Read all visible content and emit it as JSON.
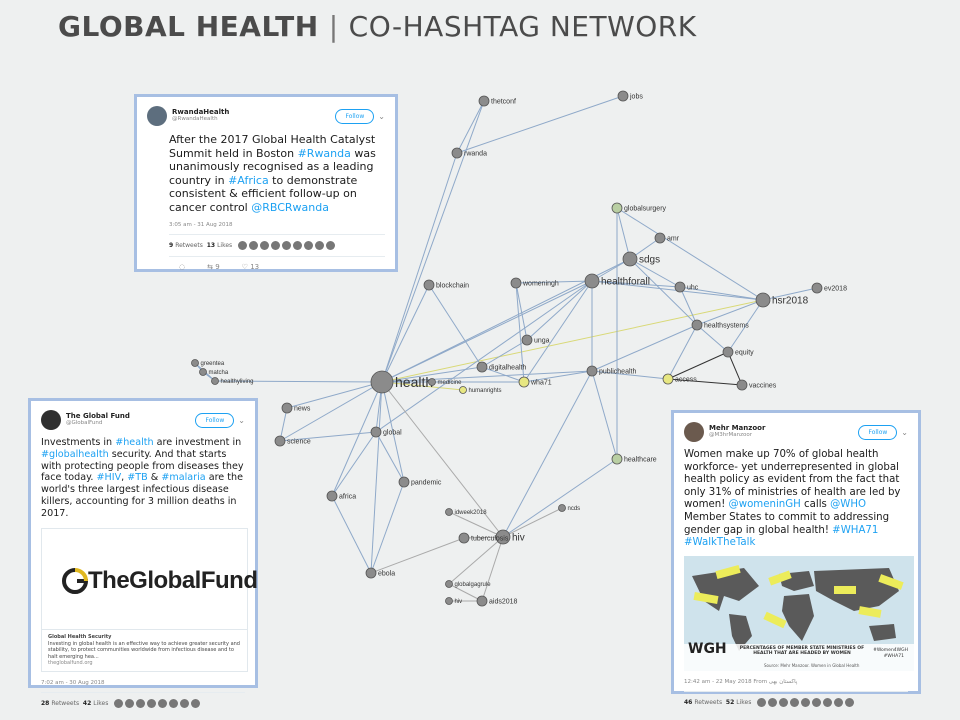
{
  "header": {
    "title_bold": "GLOBAL HEALTH",
    "separator": "|",
    "title_rest": "CO-HASHTAG NETWORK"
  },
  "colors": {
    "edge_blue": "#8fa9c9",
    "edge_gray": "#aaaaaa",
    "edge_yellow": "#d9d977",
    "edge_dark": "#333333",
    "node_gray": "#8b8b8b",
    "node_yellow": "#e7e782",
    "node_green": "#b9cfa3",
    "card_border": "#a7bfe3",
    "link": "#1da1f2"
  },
  "chart_data": {
    "type": "network",
    "nodes": [
      {
        "id": "health",
        "label": "health",
        "size": "large",
        "color": "gray"
      },
      {
        "id": "healthforall",
        "label": "healthforall",
        "size": "medium",
        "color": "gray"
      },
      {
        "id": "sdgs",
        "label": "sdgs",
        "size": "medium",
        "color": "gray"
      },
      {
        "id": "hsr2018",
        "label": "hsr2018",
        "size": "medium",
        "color": "gray"
      },
      {
        "id": "hiv",
        "label": "hiv",
        "size": "medium",
        "color": "gray"
      },
      {
        "id": "global",
        "label": "global",
        "size": "small",
        "color": "gray"
      },
      {
        "id": "publichealth",
        "label": "publichealth",
        "size": "small",
        "color": "gray"
      },
      {
        "id": "jobs",
        "label": "jobs",
        "size": "small",
        "color": "gray"
      },
      {
        "id": "thetconf",
        "label": "thetconf",
        "size": "small",
        "color": "gray"
      },
      {
        "id": "rwanda",
        "label": "rwanda",
        "size": "small",
        "color": "gray"
      },
      {
        "id": "globalsurgery",
        "label": "globalsurgery",
        "size": "small",
        "color": "green"
      },
      {
        "id": "amr",
        "label": "amr",
        "size": "small",
        "color": "gray"
      },
      {
        "id": "ev2018",
        "label": "ev2018",
        "size": "small",
        "color": "gray"
      },
      {
        "id": "blockchain",
        "label": "blockchain",
        "size": "small",
        "color": "gray"
      },
      {
        "id": "womeningh",
        "label": "womeningh",
        "size": "small",
        "color": "gray"
      },
      {
        "id": "uhc",
        "label": "uhc",
        "size": "small",
        "color": "gray"
      },
      {
        "id": "healthsystems",
        "label": "healthsystems",
        "size": "small",
        "color": "gray"
      },
      {
        "id": "unga",
        "label": "unga",
        "size": "small",
        "color": "gray"
      },
      {
        "id": "equity",
        "label": "equity",
        "size": "small",
        "color": "gray"
      },
      {
        "id": "digitalhealth",
        "label": "digitalhealth",
        "size": "small",
        "color": "gray"
      },
      {
        "id": "wha71",
        "label": "wha71",
        "size": "small",
        "color": "yellow"
      },
      {
        "id": "humanrights",
        "label": "humanrights",
        "size": "tiny",
        "color": "yellow"
      },
      {
        "id": "medicine",
        "label": "medicine",
        "size": "tiny",
        "color": "gray"
      },
      {
        "id": "access",
        "label": "access",
        "size": "small",
        "color": "yellow"
      },
      {
        "id": "vaccines",
        "label": "vaccines",
        "size": "small",
        "color": "gray"
      },
      {
        "id": "greentea",
        "label": "greentea",
        "size": "tiny",
        "color": "gray"
      },
      {
        "id": "matcha",
        "label": "matcha",
        "size": "tiny",
        "color": "gray"
      },
      {
        "id": "healthyliving",
        "label": "healthyliving",
        "size": "tiny",
        "color": "gray"
      },
      {
        "id": "news",
        "label": "news",
        "size": "small",
        "color": "gray"
      },
      {
        "id": "science",
        "label": "science",
        "size": "small",
        "color": "gray"
      },
      {
        "id": "africa",
        "label": "africa",
        "size": "small",
        "color": "gray"
      },
      {
        "id": "pandemic",
        "label": "pandemic",
        "size": "small",
        "color": "gray"
      },
      {
        "id": "healthcare",
        "label": "healthcare",
        "size": "small",
        "color": "green"
      },
      {
        "id": "ncds",
        "label": "ncds",
        "size": "tiny",
        "color": "gray"
      },
      {
        "id": "idweek2018",
        "label": "idweek2018",
        "size": "tiny",
        "color": "gray"
      },
      {
        "id": "tuberculosis",
        "label": "tuberculosis",
        "size": "small",
        "color": "gray"
      },
      {
        "id": "ebola",
        "label": "ebola",
        "size": "small",
        "color": "gray"
      },
      {
        "id": "globalgagrule",
        "label": "globalgagrule",
        "size": "tiny",
        "color": "gray"
      },
      {
        "id": "aids2018",
        "label": "aids2018",
        "size": "small",
        "color": "gray"
      },
      {
        "id": "hiv2",
        "label": "hiv",
        "size": "tiny",
        "color": "gray"
      }
    ],
    "edges": [
      [
        "thetconf",
        "rwanda"
      ],
      [
        "rwanda",
        "jobs"
      ],
      [
        "rwanda",
        "health"
      ],
      [
        "thetconf",
        "health"
      ],
      [
        "health",
        "healthforall"
      ],
      [
        "health",
        "sdgs"
      ],
      [
        "health",
        "global"
      ],
      [
        "health",
        "publichealth"
      ],
      [
        "health",
        "blockchain"
      ],
      [
        "health",
        "digitalhealth"
      ],
      [
        "health",
        "wha71"
      ],
      [
        "health",
        "news"
      ],
      [
        "health",
        "science"
      ],
      [
        "health",
        "africa"
      ],
      [
        "health",
        "pandemic"
      ],
      [
        "health",
        "ebola"
      ],
      [
        "health",
        "healthyliving"
      ],
      [
        "health",
        "hsr2018"
      ],
      [
        "health",
        "medicine"
      ],
      [
        "health",
        "humanrights"
      ],
      [
        "healthforall",
        "sdgs"
      ],
      [
        "healthforall",
        "uhc"
      ],
      [
        "healthforall",
        "hsr2018"
      ],
      [
        "healthforall",
        "womeningh"
      ],
      [
        "healthforall",
        "publichealth"
      ],
      [
        "healthforall",
        "unga"
      ],
      [
        "healthforall",
        "wha71"
      ],
      [
        "sdgs",
        "uhc"
      ],
      [
        "sdgs",
        "globalsurgery"
      ],
      [
        "sdgs",
        "healthsystems"
      ],
      [
        "sdgs",
        "amr"
      ],
      [
        "hsr2018",
        "uhc"
      ],
      [
        "hsr2018",
        "healthsystems"
      ],
      [
        "hsr2018",
        "ev2018"
      ],
      [
        "hsr2018",
        "equity"
      ],
      [
        "hsr2018",
        "globalsurgery"
      ],
      [
        "healthsystems",
        "equity"
      ],
      [
        "healthsystems",
        "access"
      ],
      [
        "equity",
        "vaccines"
      ],
      [
        "access",
        "vaccines"
      ],
      [
        "access",
        "equity"
      ],
      [
        "uhc",
        "healthsystems"
      ],
      [
        "publichealth",
        "healthcare"
      ],
      [
        "publichealth",
        "healthsystems"
      ],
      [
        "publichealth",
        "access"
      ],
      [
        "publichealth",
        "wha71"
      ],
      [
        "publichealth",
        "hiv"
      ],
      [
        "digitalhealth",
        "unga"
      ],
      [
        "digitalhealth",
        "wha71"
      ],
      [
        "womeningh",
        "wha71"
      ],
      [
        "womeningh",
        "unga"
      ],
      [
        "global",
        "pandemic"
      ],
      [
        "global",
        "science"
      ],
      [
        "global",
        "africa"
      ],
      [
        "global",
        "healthforall"
      ],
      [
        "africa",
        "ebola"
      ],
      [
        "pandemic",
        "ebola"
      ],
      [
        "hiv",
        "tuberculosis"
      ],
      [
        "hiv",
        "aids2018"
      ],
      [
        "hiv",
        "idweek2018"
      ],
      [
        "hiv",
        "globalgagrule"
      ],
      [
        "hiv",
        "health"
      ],
      [
        "hiv",
        "ncds"
      ],
      [
        "tuberculosis",
        "ebola"
      ],
      [
        "aids2018",
        "globalgagrule"
      ],
      [
        "hiv2",
        "aids2018"
      ],
      [
        "healthcare",
        "hiv"
      ],
      [
        "blockchain",
        "digitalhealth"
      ],
      [
        "globalsurgery",
        "healthcare"
      ],
      [
        "greentea",
        "matcha"
      ],
      [
        "matcha",
        "healthyliving"
      ],
      [
        "greentea",
        "healthyliving"
      ],
      [
        "news",
        "science"
      ]
    ]
  },
  "tweet_rwanda": {
    "name": "RwandaHealth",
    "handle": "@RwandaHealth",
    "follow": "Follow",
    "t1": "After the 2017 Global Health Catalyst Summit held in Boston ",
    "h1": "#Rwanda",
    "t2": " was unanimously recognised as a leading country in ",
    "h2": "#Africa",
    "t3": " to demonstrate consistent & efficient follow-up on cancer control ",
    "h3": "@RBCRwanda",
    "time": "3:05 am - 31 Aug 2018",
    "retweets": "9",
    "retweets_label": "Retweets",
    "likes": "13",
    "likes_label": "Likes",
    "retweet_count": "9",
    "like_count": "13"
  },
  "tweet_globalfund": {
    "name": "The Global Fund",
    "handle": "@GlobalFund",
    "follow": "Follow",
    "t1": "Investments in ",
    "h1": "#health",
    "t2": " are investment in ",
    "h2": "#globalhealth",
    "t3": " security. And that starts with protecting people from diseases they face today. ",
    "h3": "#HIV",
    "t4": ", ",
    "h4": "#TB",
    "t5": " & ",
    "h5": "#malaria",
    "t6": " are the world's three largest infectious disease killers, accounting for 3 million deaths in 2017.",
    "logo": "TheGlobalFund",
    "card_title": "Global Health Security",
    "card_desc": "Investing in global health is an effective way to achieve greater security and stability, to protect communities worldwide from infectious disease and to halt emerging hea...",
    "card_url": "theglobalfund.org",
    "time": "7:02 am - 30 Aug 2018",
    "retweets": "28",
    "retweets_label": "Retweets",
    "likes": "42",
    "likes_label": "Likes"
  },
  "tweet_mehr": {
    "name": "Mehr Manzoor",
    "handle": "@M3hrManzoor",
    "follow": "Follow",
    "t1": "Women make up 70% of global health workforce- yet underrepresented in global health policy as evident from the fact that only 31% of ministries of health are led by women! ",
    "h1": "@womeninGH",
    "t2": " calls ",
    "h2": "@WHO",
    "t3": " Member States to commit to addressing gender gap in global health! ",
    "h3": "#WHA71",
    "t4": " ",
    "h4": "#WalkTheTalk",
    "map_logo": "WGH",
    "map_caption": "PERCENTAGES OF MEMBER STATE MINISTRIES OF HEALTH THAT ARE HEADED BY WOMEN",
    "map_tag": "#Women4WGH",
    "map_tag2": "#WHA71",
    "map_source": "Source: Mehr Manzoor. Women in Global Health",
    "time": "12:42 am - 22 May 2018",
    "from": "From پاکستان بھی",
    "retweets": "46",
    "retweets_label": "Retweets",
    "likes": "52",
    "likes_label": "Likes"
  }
}
